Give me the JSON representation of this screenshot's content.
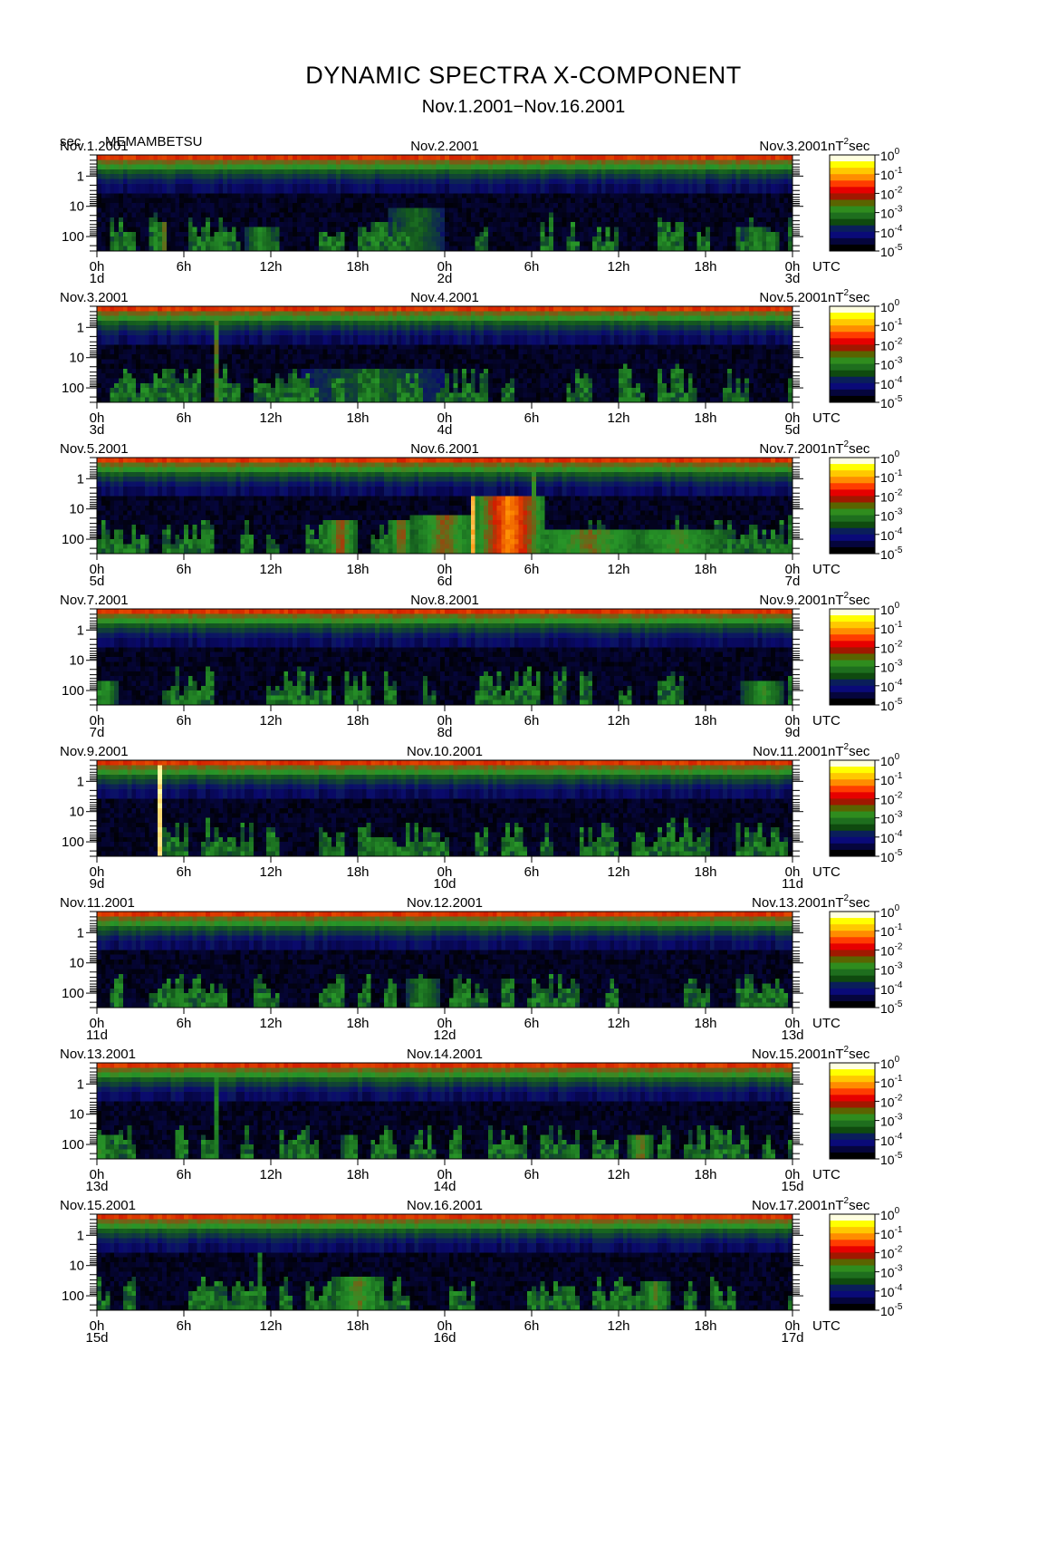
{
  "header": {
    "title": "DYNAMIC SPECTRA X-COMPONENT",
    "subtitle": "Nov.1.2001−Nov.16.2001",
    "units_label": "sec",
    "station": "MEMAMBETSU"
  },
  "chart_data": {
    "type": "heatmap",
    "panel_count": 8,
    "y_axis": {
      "label": "sec",
      "scale": "log",
      "ticks": [
        "1",
        "10",
        "100"
      ],
      "range_sec": [
        0.2,
        300
      ]
    },
    "x_axis": {
      "ticks": [
        "0h",
        "6h",
        "12h",
        "18h",
        "0h",
        "6h",
        "12h",
        "18h",
        "0h"
      ],
      "unit_label": "UTC"
    },
    "colorbar": {
      "label_prefix": "nT",
      "label_sup": "2",
      "label_suffix": "sec",
      "ticks": [
        {
          "base": "10",
          "exp": "0"
        },
        {
          "base": "10",
          "exp": "-1"
        },
        {
          "base": "10",
          "exp": "-2"
        },
        {
          "base": "10",
          "exp": "-3"
        },
        {
          "base": "10",
          "exp": "-4"
        },
        {
          "base": "10",
          "exp": "-5"
        }
      ],
      "colors": [
        "#ffffe0",
        "#ffff00",
        "#ffc800",
        "#ff8c00",
        "#ff3c00",
        "#e60000",
        "#a01800",
        "#5a6400",
        "#2f8c1e",
        "#1e6e1e",
        "#0f4a0f",
        "#0a1e5a",
        "#0a0a78",
        "#05053c",
        "#000000"
      ]
    },
    "panels": [
      {
        "left_date": "Nov.1.2001",
        "center_date": "Nov.2.2001",
        "right_date": "Nov.3.2001",
        "day_labels": [
          "1d",
          "2d",
          "3d"
        ],
        "events": [
          {
            "h": 4.6,
            "w": 0.3,
            "level": 3.5,
            "reach": 0.3
          },
          {
            "h": 11.3,
            "w": 1.0,
            "level": 2.6,
            "reach": 0.25
          },
          {
            "h": 22.0,
            "w": 2.0,
            "level": 2.0,
            "reach": 0.45
          },
          {
            "h": 45.5,
            "w": 1.0,
            "level": 2.4,
            "reach": 0.25
          },
          {
            "h": 46.5,
            "w": 0.6,
            "level": 2.8,
            "reach": 0.2
          }
        ]
      },
      {
        "left_date": "Nov.3.2001",
        "center_date": "Nov.4.2001",
        "right_date": "Nov.5.2001",
        "day_labels": [
          "3d",
          "4d",
          "5d"
        ],
        "events": [
          {
            "h": 8.3,
            "w": 0.15,
            "level": 3.6,
            "reach": 0.95
          },
          {
            "h": 19.0,
            "w": 5.0,
            "level": 1.8,
            "reach": 0.35
          }
        ]
      },
      {
        "left_date": "Nov.5.2001",
        "center_date": "Nov.6.2001",
        "right_date": "Nov.7.2001",
        "day_labels": [
          "5d",
          "6d",
          "7d"
        ],
        "events": [
          {
            "h": 16.8,
            "w": 1.2,
            "level": 3.6,
            "reach": 0.35
          },
          {
            "h": 21.0,
            "w": 0.8,
            "level": 3.6,
            "reach": 0.35
          },
          {
            "h": 24.0,
            "w": 2.5,
            "level": 3.4,
            "reach": 0.4
          },
          {
            "h": 28.5,
            "w": 2.3,
            "level": 4.8,
            "reach": 0.62
          },
          {
            "h": 26.0,
            "w": 0.2,
            "level": 5.8,
            "reach": 0.6
          },
          {
            "h": 30.2,
            "w": 0.1,
            "level": 3.8,
            "reach": 0.98
          },
          {
            "h": 34.0,
            "w": 5.0,
            "level": 3.2,
            "reach": 0.25
          },
          {
            "h": 40.0,
            "w": 4.0,
            "level": 3.0,
            "reach": 0.25
          }
        ]
      },
      {
        "left_date": "Nov.7.2001",
        "center_date": "Nov.8.2001",
        "right_date": "Nov.9.2001",
        "day_labels": [
          "7d",
          "8d",
          "9d"
        ],
        "events": [
          {
            "h": 0.6,
            "w": 0.8,
            "level": 2.8,
            "reach": 0.25
          },
          {
            "h": 46.0,
            "w": 1.5,
            "level": 2.8,
            "reach": 0.25
          }
        ]
      },
      {
        "left_date": "Nov.9.2001",
        "center_date": "Nov.10.2001",
        "right_date": "Nov.11.2001",
        "day_labels": [
          "9d",
          "10d",
          "11d"
        ],
        "events": [
          {
            "h": 4.35,
            "w": 0.12,
            "level": 5.6,
            "reach": 0.97
          },
          {
            "h": 19.5,
            "w": 1.0,
            "level": 2.6,
            "reach": 0.2
          }
        ]
      },
      {
        "left_date": "Nov.11.2001",
        "center_date": "Nov.12.2001",
        "right_date": "Nov.13.2001",
        "day_labels": [
          "11d",
          "12d",
          "13d"
        ],
        "events": [
          {
            "h": 22.5,
            "w": 1.2,
            "level": 2.4,
            "reach": 0.3
          }
        ]
      },
      {
        "left_date": "Nov.13.2001",
        "center_date": "Nov.14.2001",
        "right_date": "Nov.15.2001",
        "day_labels": [
          "13d",
          "14d",
          "15d"
        ],
        "events": [
          {
            "h": 0.3,
            "w": 0.5,
            "level": 3.2,
            "reach": 0.25
          },
          {
            "h": 17.5,
            "w": 0.6,
            "level": 2.6,
            "reach": 0.25
          },
          {
            "h": 37.5,
            "w": 0.8,
            "level": 3.4,
            "reach": 0.25
          },
          {
            "h": 8.3,
            "w": 0.2,
            "level": 2.8,
            "reach": 0.9
          }
        ]
      },
      {
        "left_date": "Nov.15.2001",
        "center_date": "Nov.16.2001",
        "right_date": "Nov.17.2001",
        "day_labels": [
          "15d",
          "16d",
          "17d"
        ],
        "events": [
          {
            "h": 18.0,
            "w": 1.8,
            "level": 3.2,
            "reach": 0.35
          },
          {
            "h": 38.5,
            "w": 1.0,
            "level": 3.0,
            "reach": 0.3
          },
          {
            "h": 11.2,
            "w": 0.2,
            "level": 2.6,
            "reach": 0.6
          }
        ]
      }
    ]
  }
}
